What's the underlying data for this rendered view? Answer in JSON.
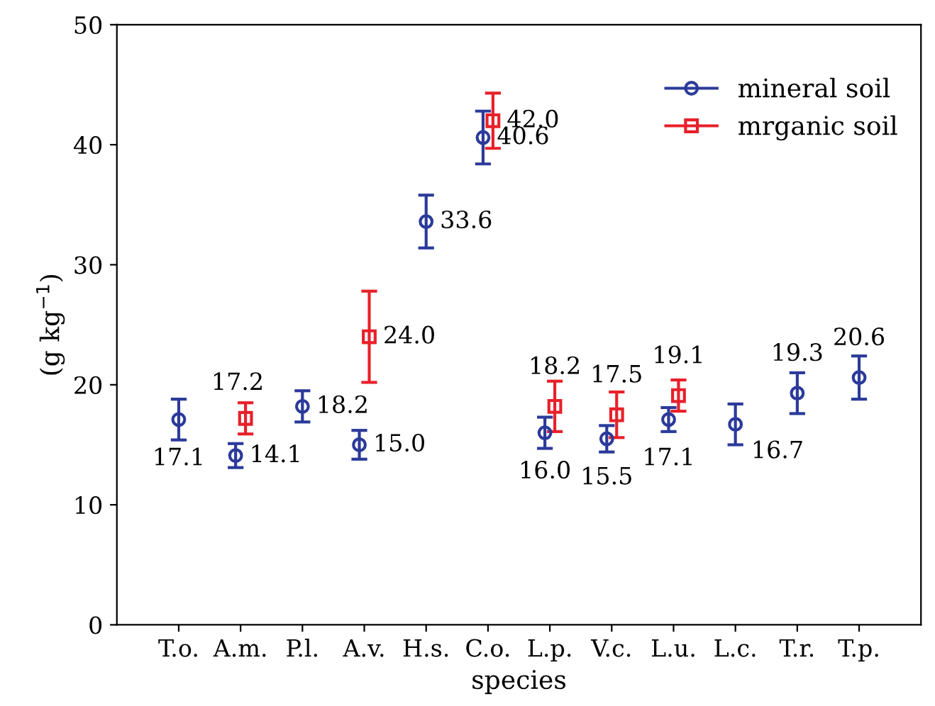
{
  "chart_data": {
    "type": "scatter",
    "xlabel": "species",
    "ylabel": "(g kg$^{−1}$)",
    "categories": [
      "T.o.",
      "A.m.",
      "P.l.",
      "A.v.",
      "H.s.",
      "C.o.",
      "L.p.",
      "V.c.",
      "L.u.",
      "L.c.",
      "T.r.",
      "T.p."
    ],
    "series": [
      {
        "name": "mineral soil",
        "color": "#2b3a9a",
        "marker": "circle",
        "values": [
          17.1,
          14.1,
          18.2,
          15.0,
          33.6,
          40.6,
          16.0,
          15.5,
          17.1,
          16.7,
          19.3,
          20.6
        ],
        "errors": [
          1.7,
          1.0,
          1.3,
          1.2,
          2.2,
          2.2,
          1.3,
          1.1,
          1.0,
          1.7,
          1.7,
          1.8
        ],
        "value_labels": [
          "17.1",
          "14.1",
          "18.2",
          "15.0",
          "33.6",
          "40.6",
          "16.0",
          "15.5",
          "17.1",
          "16.7",
          "19.3",
          "20.6"
        ]
      },
      {
        "name": "mrganic soil",
        "color": "#e8202a",
        "marker": "square",
        "values": [
          null,
          17.2,
          null,
          24.0,
          null,
          42.0,
          18.2,
          17.5,
          19.1,
          null,
          null,
          null
        ],
        "errors": [
          null,
          1.3,
          null,
          3.8,
          null,
          2.3,
          2.1,
          1.9,
          1.3,
          null,
          null,
          null
        ],
        "value_labels": [
          null,
          "17.2",
          null,
          "24.0",
          null,
          "42.0",
          "18.2",
          "17.5",
          "19.1",
          null,
          null,
          null
        ]
      }
    ],
    "ylim": [
      0,
      50
    ],
    "yticks": [
      0,
      10,
      20,
      30,
      40,
      50
    ],
    "grid": false,
    "legend": "top right"
  }
}
